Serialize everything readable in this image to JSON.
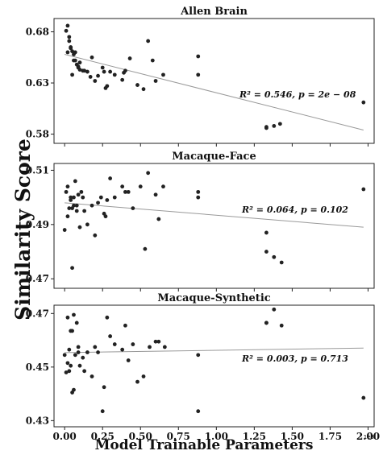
{
  "chart_data": {
    "type": "scatter",
    "ylabel": "Similarity Score",
    "xlabel": "Model Trainable Parameters",
    "x_offset_label": "1e8",
    "x_ticks": [
      "0.00",
      "0.25",
      "0.50",
      "0.75",
      "1.00",
      "1.25",
      "1.50",
      "1.75",
      "2.00"
    ],
    "x_tick_values": [
      0,
      0.25,
      0.5,
      0.75,
      1.0,
      1.25,
      1.5,
      1.75,
      2.0
    ],
    "xlim": [
      -0.07,
      2.04
    ],
    "panels": [
      {
        "title": "Allen Brain",
        "ylim": [
          0.571,
          0.693
        ],
        "y_ticks": [
          "0.58",
          "0.63",
          "0.68"
        ],
        "y_tick_values": [
          0.58,
          0.63,
          0.68
        ],
        "annotation": "R² = 0.546, p = 2e − 08",
        "fit": {
          "x": [
            0.0,
            1.97
          ],
          "y": [
            0.658,
            0.584
          ]
        },
        "x": [
          0.01,
          0.02,
          0.03,
          0.04,
          0.05,
          0.06,
          0.07,
          0.08,
          0.09,
          0.1,
          0.12,
          0.13,
          0.15,
          0.18,
          0.2,
          0.22,
          0.25,
          0.27,
          0.28,
          0.3,
          0.33,
          0.38,
          0.4,
          0.43,
          0.48,
          0.52,
          0.55,
          0.58,
          0.6,
          0.65,
          0.88,
          0.88,
          1.33,
          1.33,
          1.38,
          1.42,
          1.97,
          0.02,
          0.03,
          0.05,
          0.07,
          0.1,
          0.04,
          0.06,
          0.09,
          0.26,
          0.39,
          0.17
        ],
        "y": [
          0.681,
          0.686,
          0.675,
          0.665,
          0.661,
          0.658,
          0.652,
          0.648,
          0.646,
          0.65,
          0.642,
          0.642,
          0.641,
          0.655,
          0.632,
          0.637,
          0.645,
          0.625,
          0.627,
          0.641,
          0.638,
          0.633,
          0.642,
          0.654,
          0.628,
          0.624,
          0.671,
          0.652,
          0.632,
          0.638,
          0.656,
          0.638,
          0.586,
          0.587,
          0.588,
          0.59,
          0.611,
          0.66,
          0.671,
          0.638,
          0.66,
          0.643,
          0.664,
          0.652,
          0.645,
          0.641,
          0.64,
          0.636
        ]
      },
      {
        "title": "Macaque-Face",
        "ylim": [
          0.4665,
          0.5125
        ],
        "y_ticks": [
          "0.47",
          "0.49",
          "0.51"
        ],
        "y_tick_values": [
          0.47,
          0.49,
          0.51
        ],
        "annotation": "R² = 0.064, p = 0.102",
        "fit": {
          "x": [
            0.0,
            1.97
          ],
          "y": [
            0.498,
            0.489
          ]
        },
        "x": [
          0.0,
          0.01,
          0.02,
          0.02,
          0.03,
          0.04,
          0.05,
          0.05,
          0.06,
          0.07,
          0.08,
          0.09,
          0.1,
          0.11,
          0.12,
          0.15,
          0.18,
          0.2,
          0.22,
          0.24,
          0.26,
          0.28,
          0.3,
          0.33,
          0.38,
          0.4,
          0.42,
          0.45,
          0.5,
          0.53,
          0.55,
          0.6,
          0.62,
          0.65,
          0.88,
          0.88,
          1.33,
          1.33,
          1.38,
          1.43,
          1.97,
          0.04,
          0.06,
          0.08,
          0.13,
          0.27
        ],
        "y": [
          0.488,
          0.502,
          0.504,
          0.493,
          0.496,
          0.5,
          0.474,
          0.496,
          0.5,
          0.506,
          0.495,
          0.501,
          0.489,
          0.502,
          0.5,
          0.49,
          0.497,
          0.486,
          0.498,
          0.5,
          0.494,
          0.499,
          0.507,
          0.5,
          0.504,
          0.502,
          0.502,
          0.496,
          0.504,
          0.481,
          0.509,
          0.501,
          0.492,
          0.504,
          0.502,
          0.5,
          0.487,
          0.48,
          0.478,
          0.476,
          0.503,
          0.499,
          0.497,
          0.497,
          0.495,
          0.493
        ]
      },
      {
        "title": "Macaque-Synthetic",
        "ylim": [
          0.4277,
          0.4731
        ],
        "y_ticks": [
          "0.43",
          "0.45",
          "0.47"
        ],
        "y_tick_values": [
          0.43,
          0.45,
          0.47
        ],
        "annotation": "R² = 0.003, p = 0.713",
        "fit": {
          "x": [
            0.0,
            1.97
          ],
          "y": [
            0.4554,
            0.4571
          ]
        },
        "x": [
          0.0,
          0.01,
          0.02,
          0.02,
          0.03,
          0.04,
          0.04,
          0.05,
          0.06,
          0.06,
          0.07,
          0.08,
          0.09,
          0.1,
          0.12,
          0.13,
          0.15,
          0.18,
          0.2,
          0.22,
          0.25,
          0.26,
          0.28,
          0.3,
          0.33,
          0.38,
          0.4,
          0.42,
          0.45,
          0.48,
          0.52,
          0.56,
          0.6,
          0.62,
          0.66,
          0.88,
          0.88,
          1.33,
          1.33,
          1.38,
          1.43,
          1.97,
          0.03,
          0.05,
          0.09
        ],
        "y": [
          0.4545,
          0.448,
          0.4685,
          0.4515,
          0.4485,
          0.4635,
          0.4505,
          0.4405,
          0.4695,
          0.4415,
          0.4545,
          0.4665,
          0.4555,
          0.4505,
          0.4535,
          0.4485,
          0.4555,
          0.4465,
          0.4575,
          0.4555,
          0.4335,
          0.4425,
          0.4685,
          0.4615,
          0.4585,
          0.4565,
          0.4655,
          0.4525,
          0.4585,
          0.4445,
          0.4465,
          0.4575,
          0.4595,
          0.4595,
          0.4575,
          0.4545,
          0.4335,
          0.4665,
          0.4665,
          0.4715,
          0.4655,
          0.4385,
          0.4565,
          0.4635,
          0.4575
        ]
      }
    ]
  }
}
